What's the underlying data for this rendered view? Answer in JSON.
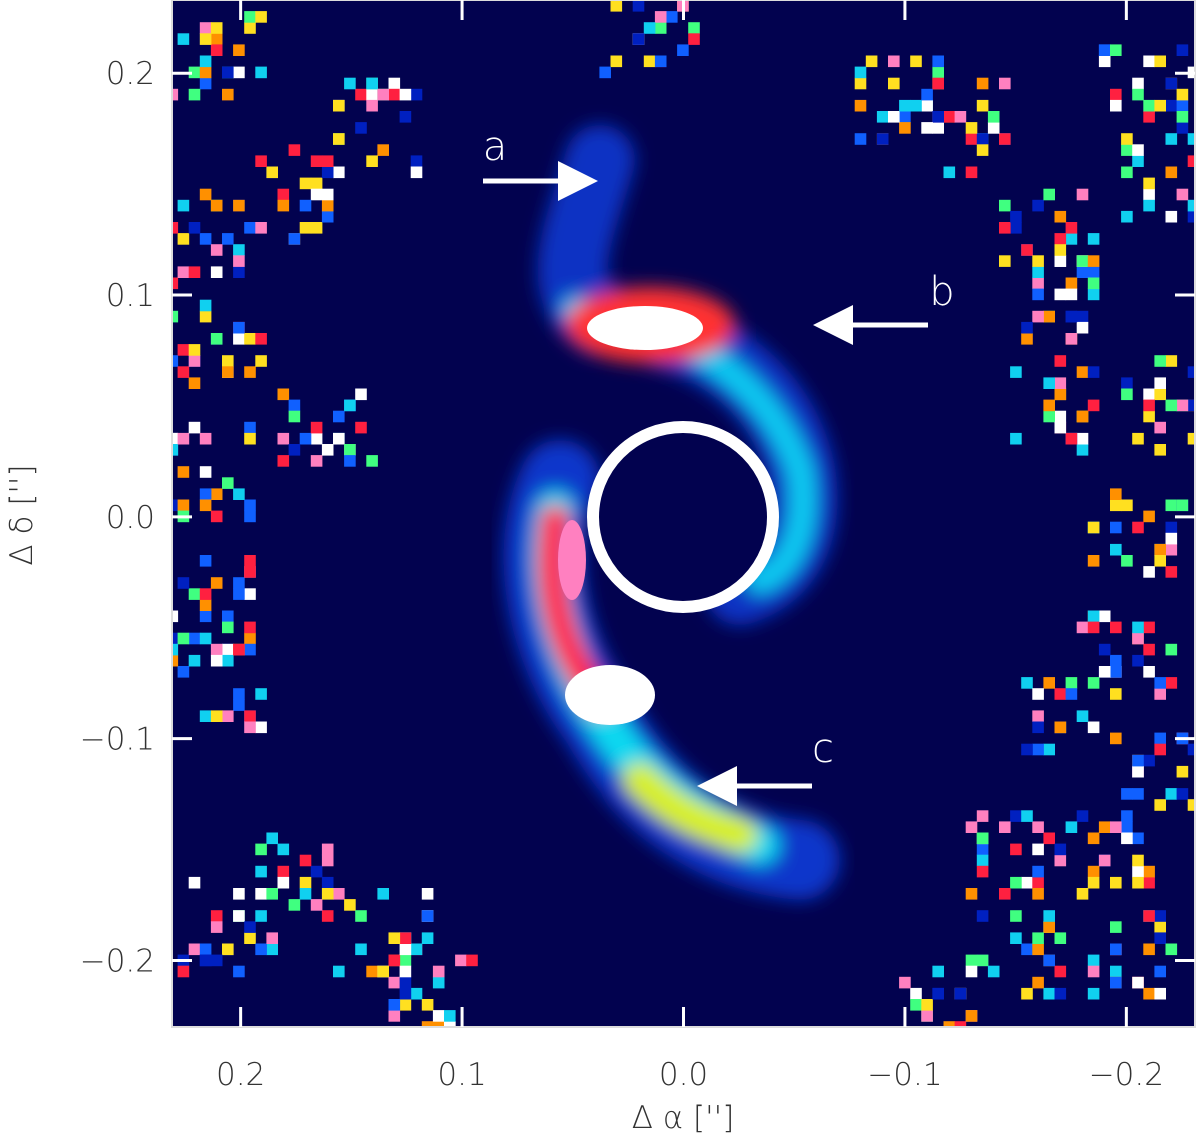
{
  "chart_data": {
    "type": "image",
    "xlabel": "Δ  α ['']",
    "ylabel": "Δ  δ ['']",
    "xlim": [
      0.231,
      -0.231
    ],
    "ylim": [
      -0.23,
      0.233
    ],
    "xticks": [
      0.2,
      0.1,
      {
        "value": 0,
        "label": "0.0"
      },
      {
        "value": -0.1,
        "label": "−0.1"
      },
      {
        "value": -0.2,
        "label": "−0.2"
      }
    ],
    "yticks": [
      {
        "value": -0.2,
        "label": "−0.2"
      },
      {
        "value": -0.1,
        "label": "−0.1"
      },
      {
        "value": 0,
        "label": "0.0"
      },
      0.1,
      0.2
    ],
    "annotations": [
      "a",
      "b",
      "c"
    ],
    "color": "#02024f"
  }
}
